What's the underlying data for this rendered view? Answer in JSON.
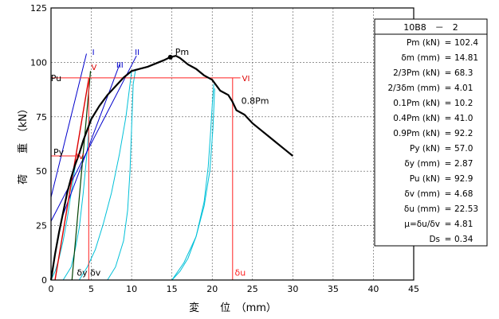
{
  "chart_data": {
    "type": "line",
    "xlabel": "変　　位　（mm）",
    "ylabel": "荷　　重　（kN）",
    "xlim": [
      0,
      45
    ],
    "ylim": [
      0,
      125
    ],
    "xticks": [
      0,
      5,
      10,
      15,
      20,
      25,
      30,
      35,
      40,
      45
    ],
    "yticks": [
      0,
      25,
      50,
      75,
      100,
      125
    ],
    "grid": true,
    "series": [
      {
        "color": "#000000",
        "values": [
          [
            0,
            0
          ],
          [
            0.5,
            12
          ],
          [
            1,
            22
          ],
          [
            1.5,
            31
          ],
          [
            2,
            40
          ],
          [
            2.5,
            47
          ],
          [
            3,
            53
          ],
          [
            3.5,
            58
          ],
          [
            4,
            64
          ],
          [
            4.5,
            69
          ],
          [
            5,
            74
          ],
          [
            6,
            80
          ],
          [
            7,
            85
          ],
          [
            8,
            89
          ],
          [
            9,
            93
          ],
          [
            10,
            96
          ],
          [
            11,
            97
          ],
          [
            12,
            98
          ],
          [
            13,
            99.5
          ],
          [
            14,
            101
          ],
          [
            14.81,
            102.4
          ],
          [
            15.5,
            103
          ],
          [
            16,
            102
          ],
          [
            17,
            99
          ],
          [
            18,
            97
          ],
          [
            19,
            94
          ],
          [
            20,
            92
          ],
          [
            21,
            87
          ],
          [
            22,
            85
          ],
          [
            22.5,
            82
          ],
          [
            23,
            78
          ],
          [
            24,
            76
          ],
          [
            25,
            72
          ],
          [
            26,
            69
          ],
          [
            27,
            66
          ],
          [
            28,
            63
          ],
          [
            29,
            60
          ],
          [
            30,
            57
          ]
        ]
      },
      {
        "color": "#00c0d8",
        "loops": [
          [
            [
              0,
              0
            ],
            [
              0.5,
              4
            ],
            [
              1,
              10
            ],
            [
              1.5,
              18
            ],
            [
              2,
              28
            ],
            [
              2.5,
              40
            ],
            [
              3,
              52
            ]
          ],
          [
            [
              1.5,
              0
            ],
            [
              2.5,
              6
            ],
            [
              3,
              14
            ],
            [
              3.5,
              24
            ],
            [
              4,
              40
            ],
            [
              4.5,
              60
            ],
            [
              4.8,
              75
            ]
          ],
          [
            [
              3.5,
              0
            ],
            [
              4.5,
              6
            ],
            [
              5.5,
              14
            ],
            [
              6.5,
              26
            ],
            [
              7.5,
              40
            ],
            [
              8.5,
              58
            ],
            [
              9.3,
              75
            ],
            [
              9.8,
              90
            ],
            [
              10,
              96
            ]
          ],
          [
            [
              7,
              0
            ],
            [
              8,
              6
            ],
            [
              9,
              18
            ],
            [
              9.5,
              32
            ],
            [
              9.8,
              50
            ],
            [
              10,
              70
            ],
            [
              10.2,
              90
            ],
            [
              10.5,
              97
            ]
          ],
          [
            [
              15,
              0
            ],
            [
              16,
              4
            ],
            [
              17,
              10
            ],
            [
              18,
              20
            ],
            [
              19,
              36
            ],
            [
              19.5,
              52
            ],
            [
              19.8,
              68
            ],
            [
              20,
              80
            ],
            [
              20.2,
              90
            ]
          ],
          [
            [
              15,
              0
            ],
            [
              16.5,
              8
            ],
            [
              18,
              20
            ],
            [
              19,
              34
            ],
            [
              19.7,
              50
            ],
            [
              20.1,
              70
            ],
            [
              20.3,
              88
            ]
          ]
        ]
      }
    ],
    "annotations": {
      "pm": {
        "label": "Pm",
        "x": 14.81,
        "y": 102.4
      },
      "pu": {
        "label": "Pu",
        "y": 92.9
      },
      "py": {
        "label": "Py",
        "y": 57.0
      },
      "du": {
        "label": "δu",
        "x": 22.53
      },
      "dy_dv": {
        "label": "δy δv"
      },
      "p08": {
        "label": "0.8Pm"
      },
      "line_I": {
        "label": "I"
      },
      "line_II": {
        "label": "II"
      },
      "line_III": {
        "label": "III"
      },
      "line_IV": {
        "label": "IV"
      },
      "line_V": {
        "label": "V"
      },
      "line_VI": {
        "label": "VI"
      }
    },
    "table": {
      "title": "10B8　－　2",
      "rows": [
        {
          "label": "Pm (kN)",
          "value": "102.4"
        },
        {
          "label": "δm (mm)",
          "value": "14.81"
        },
        {
          "label": "2/3Pm (kN)",
          "value": "68.3"
        },
        {
          "label": "2/3δm (mm)",
          "value": "4.01"
        },
        {
          "label": "0.1Pm (kN)",
          "value": "10.2"
        },
        {
          "label": "0.4Pm (kN)",
          "value": "41.0"
        },
        {
          "label": "0.9Pm (kN)",
          "value": "92.2"
        },
        {
          "label": "Py (kN)",
          "value": "57.0"
        },
        {
          "label": "δy (mm)",
          "value": "2.87"
        },
        {
          "label": "Pu (kN)",
          "value": "92.9"
        },
        {
          "label": "δv (mm)",
          "value": "4.68"
        },
        {
          "label": "δu (mm)",
          "value": "22.53"
        },
        {
          "label": "μ=δu/δv",
          "value": "4.81"
        },
        {
          "label": "Ds",
          "value": "0.34"
        }
      ]
    }
  }
}
